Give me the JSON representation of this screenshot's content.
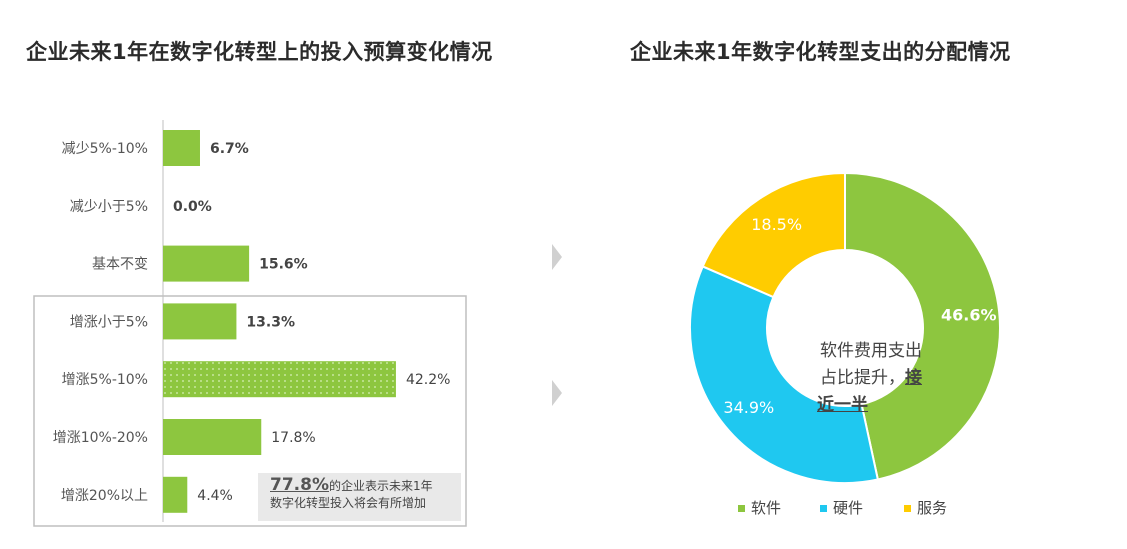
{
  "titles": {
    "left": "企业未来1年在数字化转型上的投入预算变化情况",
    "right": "企业未来1年数字化转型支出的分配情况"
  },
  "chart_data": [
    {
      "type": "bar",
      "orientation": "horizontal",
      "categories": [
        "减少5%-10%",
        "减少小于5%",
        "基本不变",
        "增涨小于5%",
        "增涨5%-10%",
        "增涨10%-20%",
        "增涨20%以上"
      ],
      "values": [
        6.7,
        0.0,
        15.6,
        13.3,
        42.2,
        17.8,
        4.4
      ],
      "value_labels": [
        "6.7%",
        "0.0%",
        "15.6%",
        "13.3%",
        "42.2%",
        "17.8%",
        "4.4%"
      ],
      "bold_labels": [
        true,
        true,
        true,
        true,
        false,
        false,
        false
      ],
      "highlight_index": 4,
      "color": "#8dc63f",
      "xlim": [
        0,
        50
      ]
    },
    {
      "type": "pie",
      "style": "donut",
      "labels": [
        "软件",
        "硬件",
        "服务"
      ],
      "values": [
        46.6,
        34.9,
        18.5
      ],
      "value_labels": [
        "46.6%",
        "34.9%",
        "18.5%"
      ],
      "colors": [
        "#8dc63f",
        "#1fc8f0",
        "#ffcc00"
      ],
      "legend_position": "bottom"
    }
  ],
  "note": {
    "highlight": "77.8%",
    "line1": "的企业表示未来1年",
    "line2": "数字化转型投入将会有所增加"
  },
  "donut_center": {
    "line1": "软件费用支出",
    "line2": "占比提升，",
    "line2_bold": "接",
    "line3_bold": "近一半"
  },
  "legend": [
    {
      "label": "软件",
      "color": "#8dc63f"
    },
    {
      "label": "硬件",
      "color": "#1fc8f0"
    },
    {
      "label": "服务",
      "color": "#ffcc00"
    }
  ]
}
